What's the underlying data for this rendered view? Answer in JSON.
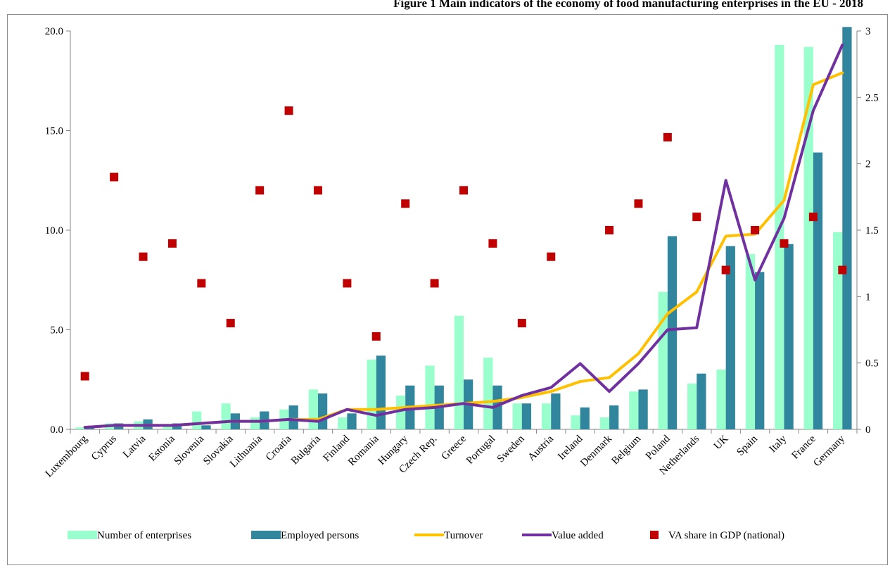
{
  "title": "Figure 1 Main indicators of the economy of food manufacturing enterprises in the EU - 2018",
  "chart_data": {
    "type": "bar",
    "title": "Figure 1 Main indicators of the economy of food manufacturing enterprises in the EU - 2018",
    "categories": [
      "Luxembourg",
      "Cyprus",
      "Latvia",
      "Estonia",
      "Slovenia",
      "Slovakia",
      "Lithuania",
      "Croatia",
      "Bulgaria",
      "Finland",
      "Romania",
      "Hungary",
      "Czech Rep.",
      "Greece",
      "Portugal",
      "Sweden",
      "Austria",
      "Ireland",
      "Denmark",
      "Belgium",
      "Poland",
      "Netherlands",
      "UK",
      "Spain",
      "Italy",
      "France",
      "Germany"
    ],
    "ylim_left": [
      0,
      20
    ],
    "yticks_left": [
      "0.0",
      "5.0",
      "10.0",
      "15.0",
      "20.0"
    ],
    "ylim_right": [
      0,
      3
    ],
    "yticks_right": [
      "0",
      "0.5",
      "1",
      "1.5",
      "2",
      "2.5",
      "3"
    ],
    "grid": false,
    "legend_position": "bottom",
    "series": [
      {
        "name": "Number of enterprises",
        "type": "bar",
        "axis": "left",
        "color": "#99ffcc",
        "values": [
          0.1,
          0.3,
          0.4,
          0.2,
          0.9,
          1.3,
          0.6,
          1.0,
          2.0,
          0.6,
          3.5,
          1.7,
          3.2,
          5.7,
          3.6,
          1.3,
          1.3,
          0.7,
          0.6,
          1.9,
          6.9,
          2.3,
          3.0,
          8.8,
          19.3,
          19.2,
          9.9
        ]
      },
      {
        "name": "Employed persons",
        "type": "bar",
        "axis": "left",
        "color": "#31859c",
        "values": [
          0.1,
          0.3,
          0.5,
          0.3,
          0.2,
          0.8,
          0.9,
          1.2,
          1.8,
          0.8,
          3.7,
          2.2,
          2.2,
          2.5,
          2.2,
          1.3,
          1.8,
          1.1,
          1.2,
          2.0,
          9.7,
          2.8,
          9.2,
          7.9,
          9.3,
          13.9,
          20.2
        ]
      },
      {
        "name": "Turnover",
        "type": "line",
        "axis": "left",
        "color": "#ffc000",
        "values": [
          0.1,
          0.2,
          0.2,
          0.2,
          0.3,
          0.4,
          0.4,
          0.5,
          0.5,
          1.0,
          1.0,
          1.1,
          1.2,
          1.3,
          1.4,
          1.6,
          1.9,
          2.4,
          2.6,
          3.8,
          5.8,
          6.9,
          9.7,
          9.8,
          11.5,
          17.3,
          17.9
        ]
      },
      {
        "name": "Value added",
        "type": "line",
        "axis": "left",
        "color": "#7030a0",
        "values": [
          0.1,
          0.2,
          0.2,
          0.2,
          0.3,
          0.4,
          0.4,
          0.5,
          0.4,
          1.0,
          0.7,
          1.0,
          1.1,
          1.3,
          1.1,
          1.7,
          2.1,
          3.3,
          1.9,
          3.3,
          5.0,
          5.1,
          12.5,
          7.5,
          10.6,
          16.0,
          19.3
        ]
      },
      {
        "name": "VA share in GDP (national)",
        "type": "scatter",
        "axis": "right",
        "color": "#c00000",
        "values": [
          0.4,
          1.9,
          1.3,
          1.4,
          1.1,
          0.8,
          1.8,
          2.4,
          1.8,
          1.1,
          0.7,
          1.7,
          1.1,
          1.8,
          1.4,
          0.8,
          1.3,
          null,
          1.5,
          1.7,
          2.2,
          1.6,
          1.2,
          1.5,
          1.4,
          1.6,
          1.2
        ]
      }
    ]
  }
}
